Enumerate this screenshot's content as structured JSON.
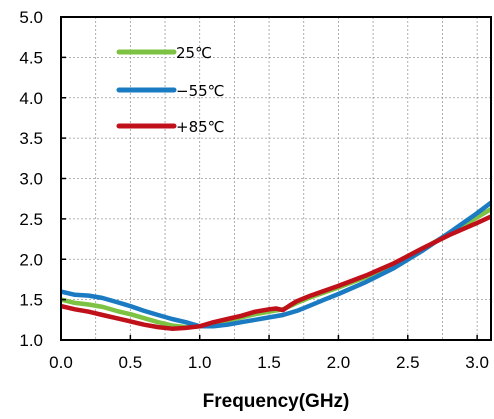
{
  "chart_data": {
    "type": "line",
    "title": "",
    "xlabel": "Frequency(GHz)",
    "ylabel": "",
    "xlim": [
      0.0,
      3.1
    ],
    "ylim": [
      1.0,
      5.0
    ],
    "xticks": [
      "0.0",
      "0.5",
      "1.0",
      "1.5",
      "2.0",
      "2.5",
      "3.0"
    ],
    "yticks": [
      "1.0",
      "1.5",
      "2.0",
      "2.5",
      "3.0",
      "3.5",
      "4.0",
      "4.5",
      "5.0"
    ],
    "grid": true,
    "legend_position": "top-left",
    "series": [
      {
        "name": "25℃",
        "color": "#7dc242",
        "x": [
          0.0,
          0.1,
          0.2,
          0.3,
          0.4,
          0.5,
          0.6,
          0.7,
          0.8,
          0.9,
          1.0,
          1.1,
          1.2,
          1.3,
          1.4,
          1.5,
          1.6,
          1.7,
          1.8,
          1.9,
          2.0,
          2.2,
          2.4,
          2.6,
          2.8,
          3.0,
          3.1
        ],
        "y": [
          1.5,
          1.46,
          1.44,
          1.41,
          1.36,
          1.32,
          1.27,
          1.22,
          1.18,
          1.16,
          1.17,
          1.2,
          1.24,
          1.28,
          1.32,
          1.35,
          1.38,
          1.46,
          1.53,
          1.59,
          1.65,
          1.78,
          1.92,
          2.12,
          2.32,
          2.52,
          2.62
        ]
      },
      {
        "name": "−55℃",
        "color": "#1a7ac2",
        "x": [
          0.0,
          0.1,
          0.2,
          0.3,
          0.4,
          0.5,
          0.6,
          0.7,
          0.8,
          0.9,
          1.0,
          1.1,
          1.2,
          1.3,
          1.4,
          1.5,
          1.6,
          1.7,
          1.8,
          1.9,
          2.0,
          2.2,
          2.4,
          2.6,
          2.8,
          3.0,
          3.1
        ],
        "y": [
          1.6,
          1.56,
          1.55,
          1.52,
          1.47,
          1.42,
          1.36,
          1.31,
          1.26,
          1.22,
          1.17,
          1.17,
          1.19,
          1.22,
          1.25,
          1.28,
          1.31,
          1.36,
          1.43,
          1.5,
          1.57,
          1.72,
          1.89,
          2.1,
          2.33,
          2.57,
          2.7
        ]
      },
      {
        "name": "+85℃",
        "color": "#c0101a",
        "x": [
          0.0,
          0.1,
          0.2,
          0.3,
          0.4,
          0.5,
          0.6,
          0.7,
          0.8,
          0.9,
          1.0,
          1.1,
          1.2,
          1.3,
          1.4,
          1.5,
          1.55,
          1.6,
          1.65,
          1.7,
          1.8,
          1.9,
          2.0,
          2.2,
          2.4,
          2.6,
          2.8,
          3.0,
          3.1
        ],
        "y": [
          1.42,
          1.38,
          1.35,
          1.31,
          1.27,
          1.23,
          1.19,
          1.16,
          1.14,
          1.15,
          1.17,
          1.22,
          1.26,
          1.3,
          1.35,
          1.38,
          1.39,
          1.37,
          1.43,
          1.48,
          1.55,
          1.61,
          1.67,
          1.8,
          1.95,
          2.13,
          2.3,
          2.45,
          2.53
        ]
      }
    ]
  }
}
